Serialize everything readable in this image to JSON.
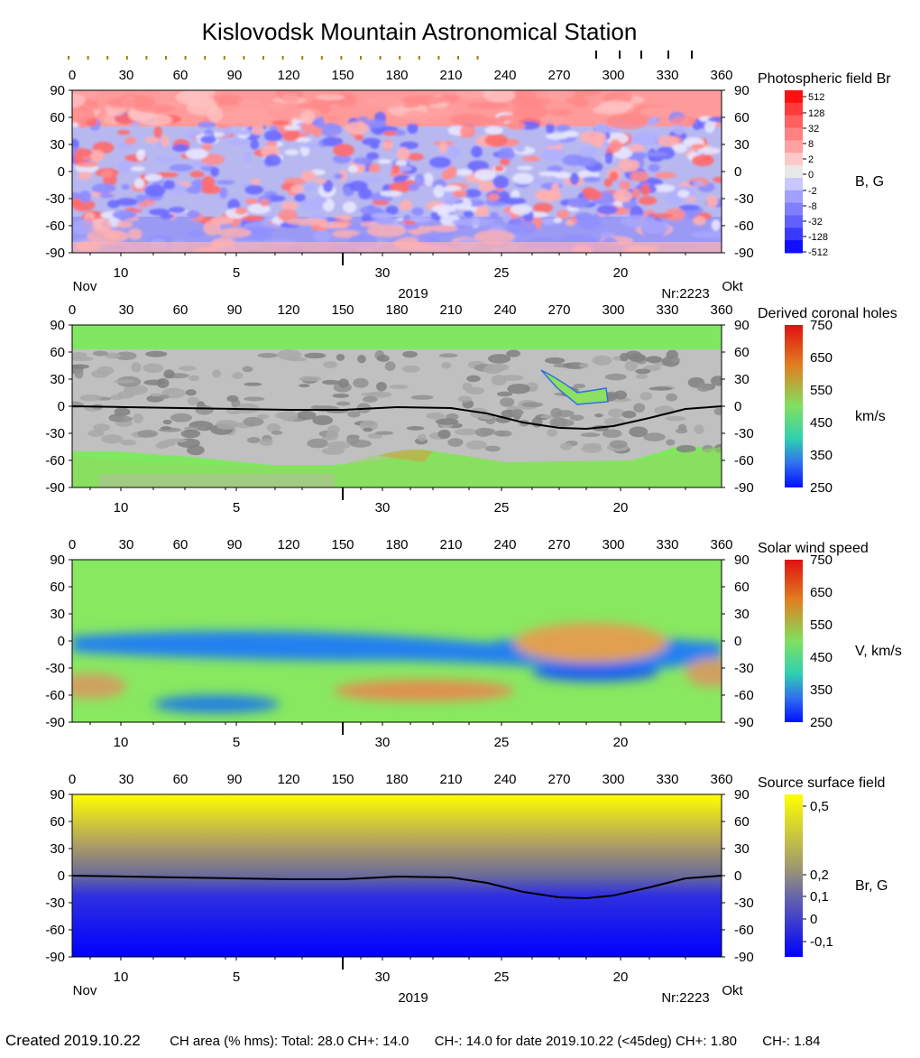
{
  "title": "Kislovodsk Mountain Astronomical Station",
  "axes": {
    "longitude_ticks": [
      "0",
      "30",
      "60",
      "90",
      "120",
      "150",
      "180",
      "210",
      "240",
      "270",
      "300",
      "330",
      "360"
    ],
    "latitude_ticks": [
      "90",
      "60",
      "30",
      "0",
      "-30",
      "-60",
      "-90"
    ],
    "date_ticks": [
      "10",
      "5",
      "30",
      "25",
      "20"
    ],
    "month_left": "Nov",
    "month_right": "Okt",
    "year": "2019",
    "rotation": "Nr:2223"
  },
  "chart_data": [
    {
      "type": "heatmap",
      "title": "Photospheric field Br",
      "unit_label": "B, G",
      "xlim": [
        0,
        360
      ],
      "ylim": [
        -90,
        90
      ],
      "colorbar_ticks": [
        "512",
        "128",
        "32",
        "8",
        "2",
        "0",
        "-2",
        "-8",
        "-32",
        "-128",
        "-512"
      ],
      "colors": {
        "positive": "#ff8c8c",
        "negative": "#8c8cff"
      }
    },
    {
      "type": "heatmap",
      "title": "Derived coronal holes",
      "unit_label": "km/s",
      "xlim": [
        0,
        360
      ],
      "ylim": [
        -90,
        90
      ],
      "colorbar_ticks": [
        "750",
        "650",
        "550",
        "450",
        "350",
        "250"
      ],
      "neutral_line": [
        [
          0,
          0
        ],
        [
          30,
          -1
        ],
        [
          60,
          -2
        ],
        [
          90,
          -3
        ],
        [
          120,
          -4
        ],
        [
          150,
          -4
        ],
        [
          180,
          -1
        ],
        [
          210,
          -2
        ],
        [
          230,
          -8
        ],
        [
          250,
          -18
        ],
        [
          270,
          -24
        ],
        [
          285,
          -25
        ],
        [
          300,
          -22
        ],
        [
          320,
          -13
        ],
        [
          340,
          -3
        ],
        [
          360,
          0
        ]
      ]
    },
    {
      "type": "heatmap",
      "title": "Solar wind speed",
      "unit_label": "V, km/s",
      "xlim": [
        0,
        360
      ],
      "ylim": [
        -90,
        90
      ],
      "colorbar_ticks": [
        "750",
        "650",
        "550",
        "450",
        "350",
        "250"
      ]
    },
    {
      "type": "heatmap",
      "title": "Source surface field",
      "unit_label": "Br, G",
      "xlim": [
        0,
        360
      ],
      "ylim": [
        -90,
        90
      ],
      "colorbar_ticks": [
        "0,5",
        "0,2",
        "0,1",
        "0",
        "-0,1"
      ],
      "neutral_line": [
        [
          0,
          0
        ],
        [
          30,
          -1
        ],
        [
          60,
          -2
        ],
        [
          90,
          -3
        ],
        [
          120,
          -4
        ],
        [
          150,
          -4
        ],
        [
          180,
          -1
        ],
        [
          210,
          -2
        ],
        [
          230,
          -8
        ],
        [
          250,
          -18
        ],
        [
          270,
          -24
        ],
        [
          285,
          -25
        ],
        [
          300,
          -22
        ],
        [
          320,
          -13
        ],
        [
          340,
          -3
        ],
        [
          360,
          0
        ]
      ]
    }
  ],
  "footer": {
    "created_label": "Created",
    "created_date": "2019.10.22",
    "ch_area": "CH area (% hms): Total: 28.0 CH+: 14.0",
    "ch_minus": "CH-: 14.0 for date 2019.10.22 (<45deg) CH+: 1.80",
    "ch_minus2": "CH-: 1.84"
  }
}
